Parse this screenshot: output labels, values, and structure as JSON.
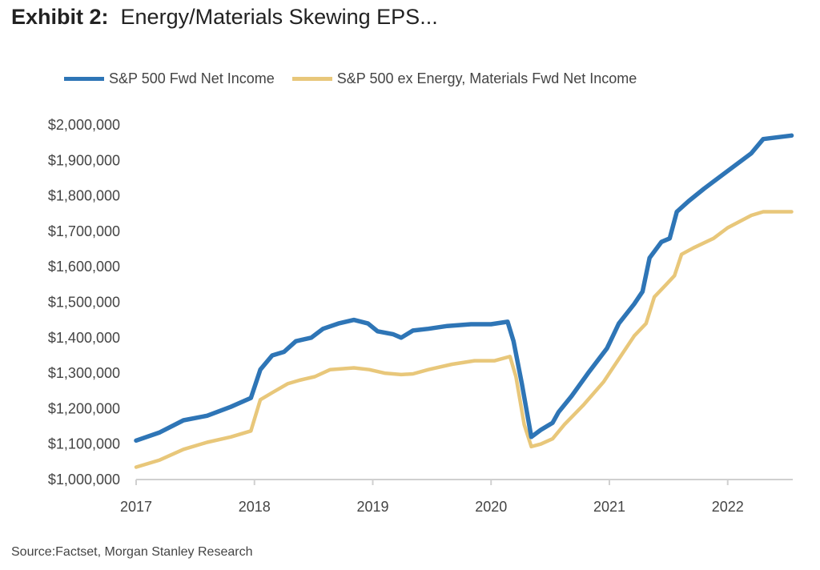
{
  "title": {
    "bold": "Exhibit 2:",
    "text": "Energy/Materials Skewing EPS..."
  },
  "source": "Source:Factset, Morgan Stanley Research",
  "chart_data": {
    "type": "line",
    "title": "Energy/Materials Skewing EPS...",
    "xlabel": "",
    "ylabel": "",
    "xlim": [
      2017,
      2022.55
    ],
    "ylim": [
      1000000,
      2000000
    ],
    "x_ticks": [
      2017,
      2018,
      2019,
      2020,
      2021,
      2022
    ],
    "x_tick_labels": [
      "2017",
      "2018",
      "2019",
      "2020",
      "2021",
      "2022"
    ],
    "y_ticks": [
      1000000,
      1100000,
      1200000,
      1300000,
      1400000,
      1500000,
      1600000,
      1700000,
      1800000,
      1900000,
      2000000
    ],
    "y_tick_labels": [
      "$1,000,000",
      "$1,100,000",
      "$1,200,000",
      "$1,300,000",
      "$1,400,000",
      "$1,500,000",
      "$1,600,000",
      "$1,700,000",
      "$1,800,000",
      "$1,900,000",
      "$2,000,000"
    ],
    "grid": false,
    "legend_position": "top",
    "series": [
      {
        "name": "S&P 500 Fwd Net Income",
        "color": "#2e75b6",
        "x": [
          2017.0,
          2017.2,
          2017.4,
          2017.6,
          2017.8,
          2017.97,
          2018.05,
          2018.15,
          2018.25,
          2018.35,
          2018.48,
          2018.58,
          2018.71,
          2018.84,
          2018.96,
          2019.04,
          2019.17,
          2019.24,
          2019.34,
          2019.47,
          2019.63,
          2019.83,
          2020.0,
          2020.14,
          2020.19,
          2020.26,
          2020.34,
          2020.42,
          2020.52,
          2020.57,
          2020.68,
          2020.82,
          2020.98,
          2021.08,
          2021.21,
          2021.28,
          2021.34,
          2021.44,
          2021.51,
          2021.57,
          2021.67,
          2021.8,
          2022.0,
          2022.2,
          2022.3,
          2022.54
        ],
        "y": [
          1110000,
          1133000,
          1167000,
          1180000,
          1205000,
          1230000,
          1310000,
          1350000,
          1360000,
          1390000,
          1400000,
          1425000,
          1440000,
          1450000,
          1440000,
          1418000,
          1410000,
          1400000,
          1420000,
          1425000,
          1433000,
          1438000,
          1438000,
          1445000,
          1390000,
          1270000,
          1120000,
          1140000,
          1160000,
          1190000,
          1235000,
          1300000,
          1370000,
          1440000,
          1495000,
          1530000,
          1625000,
          1670000,
          1680000,
          1755000,
          1785000,
          1820000,
          1870000,
          1920000,
          1960000,
          1970000
        ]
      },
      {
        "name": "S&P 500 ex Energy, Materials Fwd Net Income",
        "color": "#e8c77a",
        "x": [
          2017.0,
          2017.2,
          2017.4,
          2017.6,
          2017.8,
          2017.97,
          2018.05,
          2018.15,
          2018.28,
          2018.38,
          2018.51,
          2018.64,
          2018.84,
          2018.97,
          2019.1,
          2019.24,
          2019.34,
          2019.47,
          2019.67,
          2019.86,
          2020.03,
          2020.16,
          2020.21,
          2020.28,
          2020.34,
          2020.42,
          2020.52,
          2020.62,
          2020.78,
          2020.95,
          2021.08,
          2021.21,
          2021.31,
          2021.38,
          2021.48,
          2021.55,
          2021.61,
          2021.71,
          2021.88,
          2022.0,
          2022.2,
          2022.3,
          2022.54
        ],
        "y": [
          1035000,
          1055000,
          1085000,
          1105000,
          1120000,
          1137000,
          1225000,
          1245000,
          1270000,
          1280000,
          1290000,
          1310000,
          1315000,
          1310000,
          1300000,
          1296000,
          1298000,
          1310000,
          1325000,
          1335000,
          1335000,
          1347000,
          1290000,
          1155000,
          1093000,
          1100000,
          1115000,
          1155000,
          1210000,
          1275000,
          1340000,
          1405000,
          1440000,
          1515000,
          1550000,
          1575000,
          1635000,
          1653000,
          1680000,
          1710000,
          1745000,
          1755000,
          1755000
        ]
      }
    ]
  }
}
